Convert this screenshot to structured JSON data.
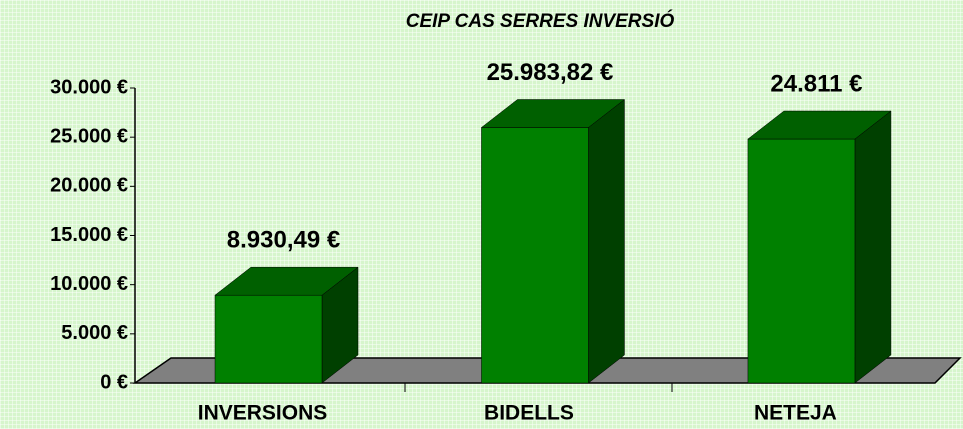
{
  "chart_data": {
    "type": "bar3d",
    "title": "CEIP CAS SERRES INVERSIÓ",
    "categories": [
      "INVERSIONS",
      "BIDELLS",
      "NETEJA"
    ],
    "values": [
      8930.49,
      25983.82,
      24811
    ],
    "value_labels": [
      "8.930,49 €",
      "25.983,82 €",
      "24.811 €"
    ],
    "color": "#008000",
    "ylim": [
      0,
      30000
    ],
    "yticks": [
      {
        "value": 0,
        "label": "0 €"
      },
      {
        "value": 5000,
        "label": "5.000 €"
      },
      {
        "value": 10000,
        "label": "10.000 €"
      },
      {
        "value": 15000,
        "label": "15.000 €"
      },
      {
        "value": 20000,
        "label": "20.000 €"
      },
      {
        "value": 25000,
        "label": "25.000 €"
      },
      {
        "value": 30000,
        "label": "30.000 €"
      }
    ]
  }
}
